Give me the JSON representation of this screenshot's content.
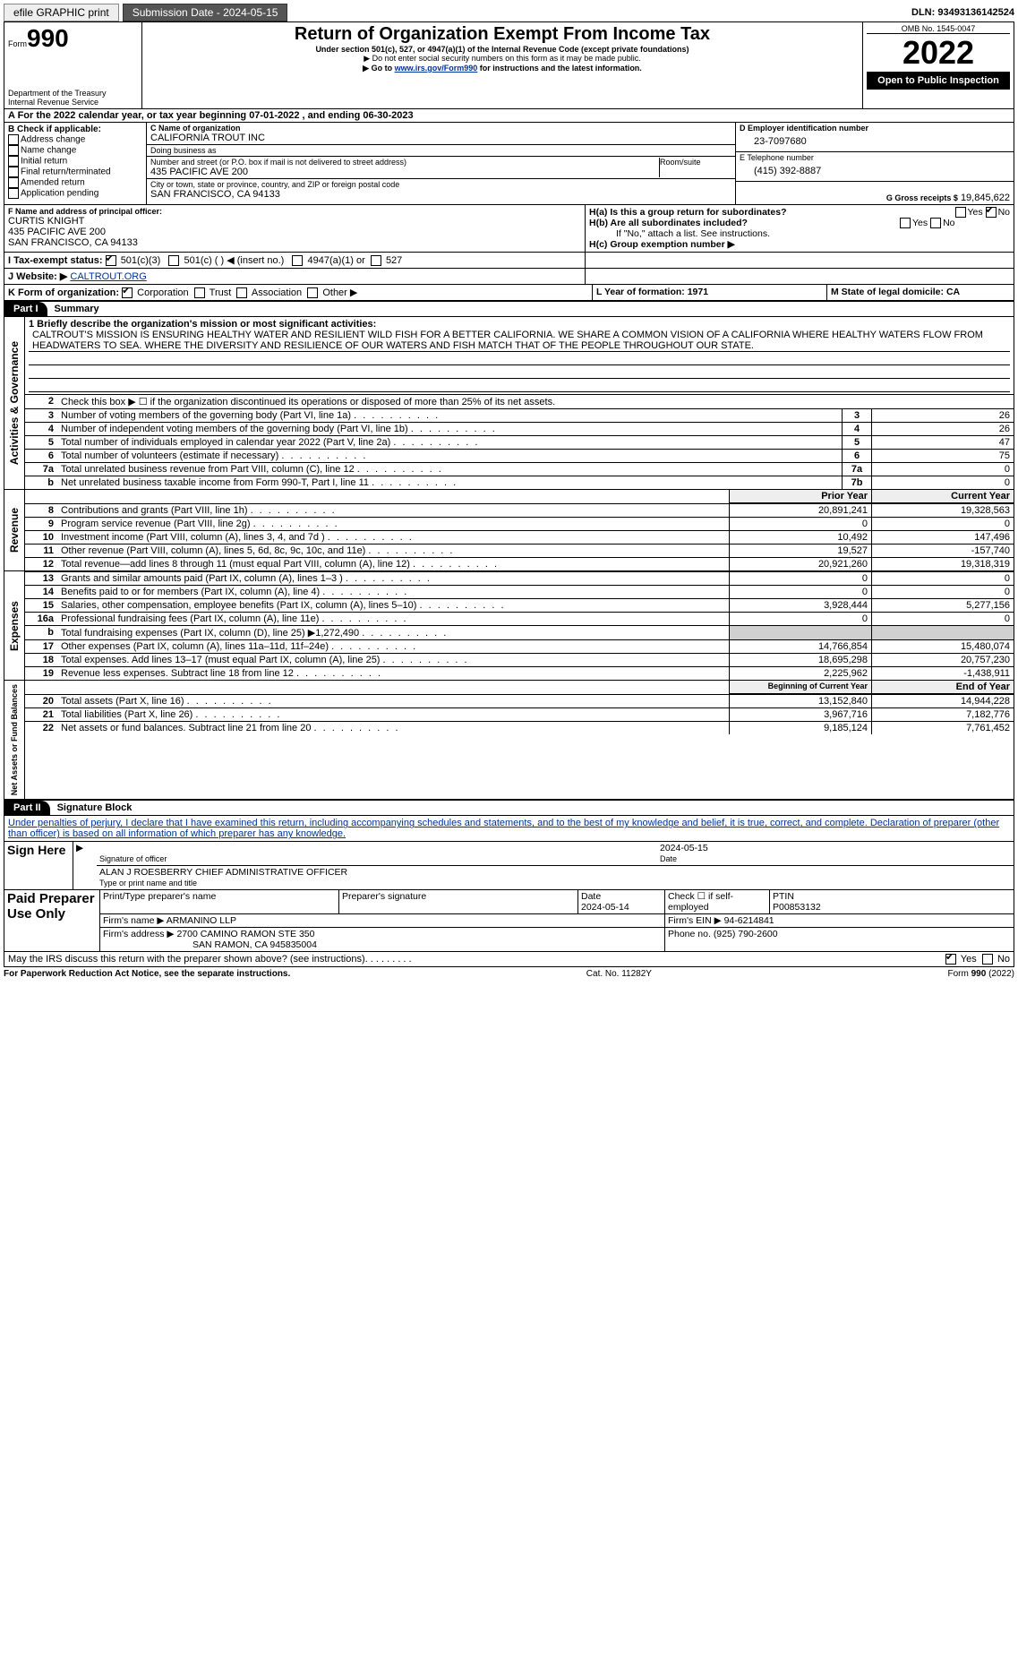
{
  "top": {
    "efile": "efile GRAPHIC print",
    "submission_label": "Submission Date - 2024-05-15",
    "dln_label": "DLN: 93493136142524"
  },
  "hdr": {
    "form": "Form",
    "form_no": "990",
    "title": "Return of Organization Exempt From Income Tax",
    "subtitle": "Under section 501(c), 527, or 4947(a)(1) of the Internal Revenue Code (except private foundations)",
    "note1": "▶ Do not enter social security numbers on this form as it may be made public.",
    "note2_pre": "▶ Go to ",
    "note2_link": "www.irs.gov/Form990",
    "note2_post": " for instructions and the latest information.",
    "dept": "Department of the Treasury",
    "irs": "Internal Revenue Service",
    "omb": "OMB No. 1545-0047",
    "year": "2022",
    "open": "Open to Public Inspection"
  },
  "A": {
    "line": "A For the 2022 calendar year, or tax year beginning 07-01-2022    , and ending 06-30-2023"
  },
  "B": {
    "label": "B Check if applicable:",
    "items": [
      "Address change",
      "Name change",
      "Initial return",
      "Final return/terminated",
      "Amended return",
      "Application pending"
    ]
  },
  "C": {
    "name_lbl": "C Name of organization",
    "name": "CALIFORNIA TROUT INC",
    "dba_lbl": "Doing business as",
    "dba": "",
    "street_lbl": "Number and street (or P.O. box if mail is not delivered to street address)",
    "room_lbl": "Room/suite",
    "street": "435 PACIFIC AVE 200",
    "city_lbl": "City or town, state or province, country, and ZIP or foreign postal code",
    "city": "SAN FRANCISCO, CA  94133"
  },
  "D": {
    "lbl": "D Employer identification number",
    "val": "23-7097680"
  },
  "E": {
    "lbl": "E Telephone number",
    "val": "(415) 392-8887"
  },
  "G": {
    "lbl": "G Gross receipts $",
    "val": "19,845,622"
  },
  "F": {
    "lbl": "F  Name and address of principal officer:",
    "l1": "CURTIS KNIGHT",
    "l2": "435 PACIFIC AVE 200",
    "l3": "SAN FRANCISCO, CA  94133"
  },
  "H": {
    "a": "H(a)  Is this a group return for subordinates?",
    "b": "H(b)  Are all subordinates included?",
    "b_note": "If \"No,\" attach a list. See instructions.",
    "c": "H(c)  Group exemption number ▶",
    "yes": "Yes",
    "no": "No"
  },
  "I": {
    "lbl": "I   Tax-exempt status:",
    "o1": "501(c)(3)",
    "o2": "501(c) (    ) ◀ (insert no.)",
    "o3": "4947(a)(1) or",
    "o4": "527"
  },
  "J": {
    "lbl": "J   Website: ▶",
    "val": "CALTROUT.ORG"
  },
  "K": {
    "lbl": "K Form of organization:",
    "o1": "Corporation",
    "o2": "Trust",
    "o3": "Association",
    "o4": "Other ▶"
  },
  "L": {
    "lbl": "L Year of formation: 1971"
  },
  "M": {
    "lbl": "M State of legal domicile: CA"
  },
  "part1": {
    "tab": "Part I",
    "title": "Summary"
  },
  "mission": {
    "lbl": "1  Briefly describe the organization's mission or most significant activities:",
    "text": "CALTROUT'S MISSION IS ENSURING HEALTHY WATER AND RESILIENT WILD FISH FOR A BETTER CALIFORNIA. WE SHARE A COMMON VISION OF A CALIFORNIA WHERE HEALTHY WATERS FLOW FROM HEADWATERS TO SEA. WHERE THE DIVERSITY AND RESILIENCE OF OUR WATERS AND FISH MATCH THAT OF THE PEOPLE THROUGHOUT OUR STATE."
  },
  "gov": {
    "label": "Activities & Governance",
    "l2": "Check this box ▶ ☐  if the organization discontinued its operations or disposed of more than 25% of its net assets.",
    "rows": [
      {
        "n": "3",
        "d": "Number of voting members of the governing body (Part VI, line 1a)",
        "k": "3",
        "v": "26"
      },
      {
        "n": "4",
        "d": "Number of independent voting members of the governing body (Part VI, line 1b)",
        "k": "4",
        "v": "26"
      },
      {
        "n": "5",
        "d": "Total number of individuals employed in calendar year 2022 (Part V, line 2a)",
        "k": "5",
        "v": "47"
      },
      {
        "n": "6",
        "d": "Total number of volunteers (estimate if necessary)",
        "k": "6",
        "v": "75"
      },
      {
        "n": "7a",
        "d": "Total unrelated business revenue from Part VIII, column (C), line 12",
        "k": "7a",
        "v": "0"
      },
      {
        "n": "b",
        "d": "Net unrelated business taxable income from Form 990-T, Part I, line 11",
        "k": "7b",
        "v": "0"
      }
    ]
  },
  "rev": {
    "label": "Revenue",
    "hdr_prior": "Prior Year",
    "hdr_curr": "Current Year",
    "rows": [
      {
        "n": "8",
        "d": "Contributions and grants (Part VIII, line 1h)",
        "p": "20,891,241",
        "c": "19,328,563"
      },
      {
        "n": "9",
        "d": "Program service revenue (Part VIII, line 2g)",
        "p": "0",
        "c": "0"
      },
      {
        "n": "10",
        "d": "Investment income (Part VIII, column (A), lines 3, 4, and 7d )",
        "p": "10,492",
        "c": "147,496"
      },
      {
        "n": "11",
        "d": "Other revenue (Part VIII, column (A), lines 5, 6d, 8c, 9c, 10c, and 11e)",
        "p": "19,527",
        "c": "-157,740"
      },
      {
        "n": "12",
        "d": "Total revenue—add lines 8 through 11 (must equal Part VIII, column (A), line 12)",
        "p": "20,921,260",
        "c": "19,318,319"
      }
    ]
  },
  "exp": {
    "label": "Expenses",
    "rows": [
      {
        "n": "13",
        "d": "Grants and similar amounts paid (Part IX, column (A), lines 1–3 )",
        "p": "0",
        "c": "0"
      },
      {
        "n": "14",
        "d": "Benefits paid to or for members (Part IX, column (A), line 4)",
        "p": "0",
        "c": "0"
      },
      {
        "n": "15",
        "d": "Salaries, other compensation, employee benefits (Part IX, column (A), lines 5–10)",
        "p": "3,928,444",
        "c": "5,277,156"
      },
      {
        "n": "16a",
        "d": "Professional fundraising fees (Part IX, column (A), line 11e)",
        "p": "0",
        "c": "0"
      },
      {
        "n": "b",
        "d": "Total fundraising expenses (Part IX, column (D), line 25) ▶1,272,490",
        "p": "",
        "c": "",
        "grey": true
      },
      {
        "n": "17",
        "d": "Other expenses (Part IX, column (A), lines 11a–11d, 11f–24e)",
        "p": "14,766,854",
        "c": "15,480,074"
      },
      {
        "n": "18",
        "d": "Total expenses. Add lines 13–17 (must equal Part IX, column (A), line 25)",
        "p": "18,695,298",
        "c": "20,757,230"
      },
      {
        "n": "19",
        "d": "Revenue less expenses. Subtract line 18 from line 12",
        "p": "2,225,962",
        "c": "-1,438,911"
      }
    ]
  },
  "net": {
    "label": "Net Assets or Fund Balances",
    "hdr_beg": "Beginning of Current Year",
    "hdr_end": "End of Year",
    "rows": [
      {
        "n": "20",
        "d": "Total assets (Part X, line 16)",
        "p": "13,152,840",
        "c": "14,944,228"
      },
      {
        "n": "21",
        "d": "Total liabilities (Part X, line 26)",
        "p": "3,967,716",
        "c": "7,182,776"
      },
      {
        "n": "22",
        "d": "Net assets or fund balances. Subtract line 21 from line 20",
        "p": "9,185,124",
        "c": "7,761,452"
      }
    ]
  },
  "part2": {
    "tab": "Part II",
    "title": "Signature Block"
  },
  "sig": {
    "jurat": "Under penalties of perjury, I declare that I have examined this return, including accompanying schedules and statements, and to the best of my knowledge and belief, it is true, correct, and complete. Declaration of preparer (other than officer) is based on all information of which preparer has any knowledge.",
    "sign_here": "Sign Here",
    "date": "2024-05-15",
    "sig_officer": "Signature of officer",
    "date_lbl": "Date",
    "name": "ALAN J ROESBERRY CHIEF ADMINISTRATIVE OFFICER",
    "type_name": "Type or print name and title"
  },
  "prep": {
    "lbl": "Paid Preparer Use Only",
    "h1": "Print/Type preparer's name",
    "h2": "Preparer's signature",
    "h3": "Date",
    "h4": "Check ☐ if self-employed",
    "h5": "PTIN",
    "date": "2024-05-14",
    "ptin": "P00853132",
    "firm_lbl": "Firm's name    ▶",
    "firm": "ARMANINO LLP",
    "ein_lbl": "Firm's EIN ▶",
    "ein": "94-6214841",
    "addr_lbl": "Firm's address ▶",
    "addr1": "2700 CAMINO RAMON STE 350",
    "addr2": "SAN RAMON, CA  945835004",
    "phone_lbl": "Phone no.",
    "phone": "(925) 790-2600"
  },
  "may": {
    "q": "May the IRS discuss this return with the preparer shown above? (see instructions)",
    "yes": "Yes",
    "no": "No"
  },
  "foot": {
    "l": "For Paperwork Reduction Act Notice, see the separate instructions.",
    "c": "Cat. No. 11282Y",
    "r": "Form 990 (2022)"
  }
}
